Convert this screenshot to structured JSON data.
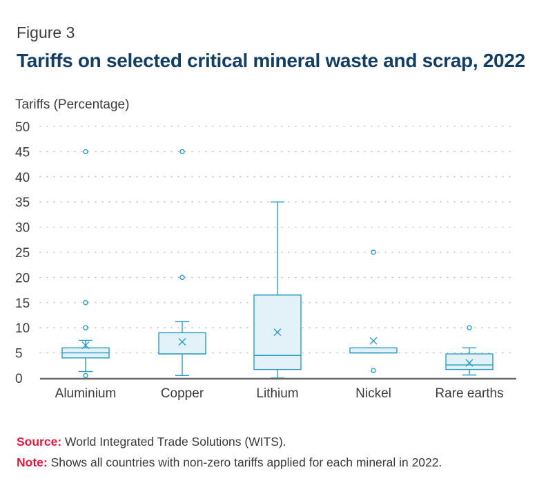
{
  "figure_label": "Figure 3",
  "title": "Tariffs on selected critical mineral waste and scrap, 2022",
  "source": {
    "label": "Source:",
    "text": " World Integrated Trade Solutions (WITS)."
  },
  "note": {
    "label": "Note:",
    "text": " Shows all countries with non-zero tariffs applied for each mineral in 2022."
  },
  "colors": {
    "box_stroke": "#2a9cc6",
    "box_fill": "#e3f1f9",
    "grid": "#b5b5b5",
    "axis": "#666666",
    "title": "#133d63",
    "label_accent": "#e0193f"
  },
  "chart_data": {
    "type": "boxplot",
    "ylabel": "Tariffs (Percentage)",
    "ylim": [
      0,
      50
    ],
    "yticks": [
      0,
      5,
      10,
      15,
      20,
      25,
      30,
      35,
      40,
      45,
      50
    ],
    "grid": true,
    "categories": [
      "Aluminium",
      "Copper",
      "Lithium",
      "Nickel",
      "Rare earths"
    ],
    "boxes": [
      {
        "min": 1.3,
        "q1": 4,
        "median": 5,
        "q3": 6,
        "max": 7.5,
        "mean": 6.5,
        "outliers": [
          0.5,
          10,
          15,
          45
        ]
      },
      {
        "min": 0.5,
        "q1": 4.8,
        "median": 4.8,
        "q3": 9,
        "max": 11.2,
        "mean": 7.2,
        "outliers": [
          20,
          45
        ]
      },
      {
        "min": 0,
        "q1": 1.7,
        "median": 4.5,
        "q3": 16.5,
        "max": 35,
        "mean": 9.1,
        "outliers": []
      },
      {
        "min": 5,
        "q1": 5,
        "median": 5,
        "q3": 6,
        "max": 6,
        "mean": 7.4,
        "outliers": [
          1.5,
          25
        ]
      },
      {
        "min": 0.6,
        "q1": 1.7,
        "median": 2.6,
        "q3": 4.8,
        "max": 6,
        "mean": 3,
        "outliers": [
          10
        ]
      }
    ]
  }
}
